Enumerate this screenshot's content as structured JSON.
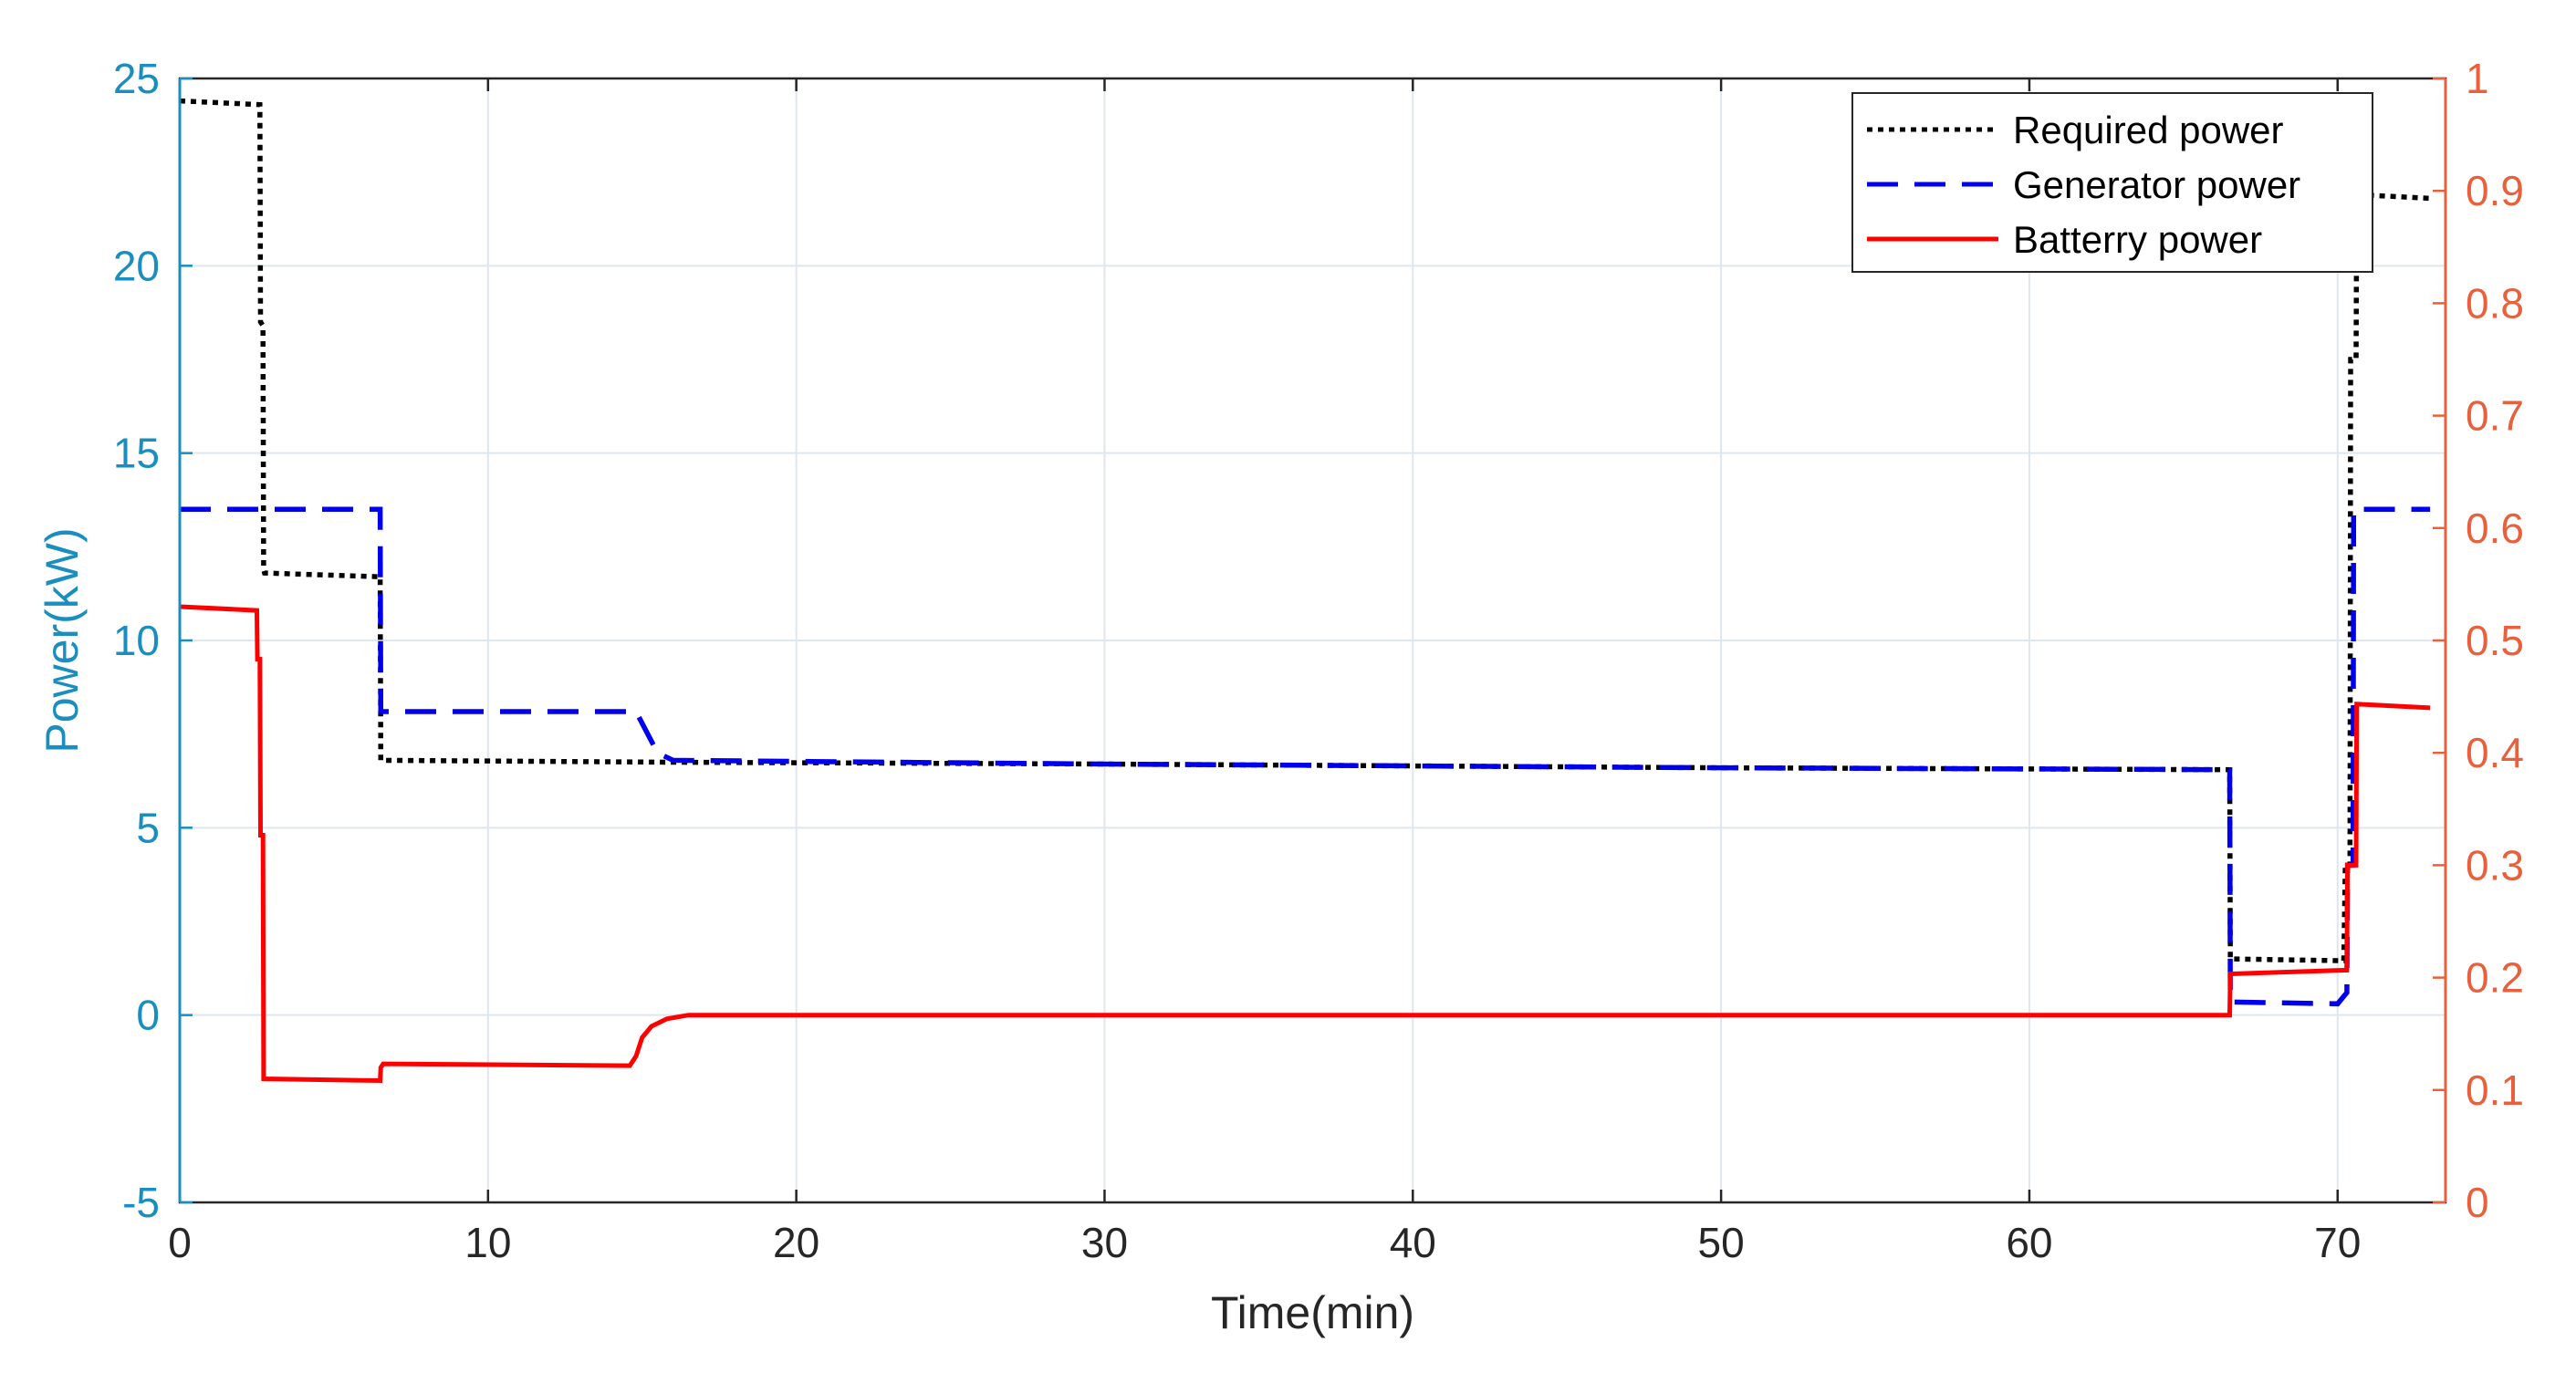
{
  "chart_data": {
    "type": "line",
    "title": "",
    "xlabel": "Time(min)",
    "ylabel": "Power(kW)",
    "xlim": [
      0,
      73.5
    ],
    "ylim": [
      -5,
      25
    ],
    "y2lim": [
      0,
      1
    ],
    "xticks": [
      0,
      10,
      20,
      30,
      40,
      50,
      60,
      70
    ],
    "yticks": [
      -5,
      0,
      5,
      10,
      15,
      20,
      25
    ],
    "y2ticks": [
      0,
      0.1,
      0.2,
      0.3,
      0.4,
      0.5,
      0.6,
      0.7,
      0.8,
      0.9,
      1
    ],
    "x_tick_labels": [
      "0",
      "10",
      "20",
      "30",
      "40",
      "50",
      "60",
      "70"
    ],
    "y_tick_labels": [
      "-5",
      "0",
      "5",
      "10",
      "15",
      "20",
      "25"
    ],
    "y2_tick_labels": [
      "0",
      "0.1",
      "0.2",
      "0.3",
      "0.4",
      "0.5",
      "0.6",
      "0.7",
      "0.8",
      "0.9",
      "1"
    ],
    "grid": true,
    "legend_position": "top-right",
    "colors": {
      "left_axis": "#1a8fbf",
      "right_axis": "#e8603c",
      "grid": "#dfe6ee",
      "frame": "#262626"
    },
    "series": [
      {
        "name": "Required power",
        "color": "#000000",
        "style": "dotted",
        "x": [
          0,
          2.6,
          2.62,
          2.7,
          2.72,
          2.75,
          6.5,
          6.52,
          16.0,
          30,
          50,
          66.5,
          66.52,
          70.2,
          70.25,
          70.4,
          70.42,
          70.6,
          70.62,
          73.0
        ],
        "y": [
          24.4,
          24.3,
          18.5,
          18.4,
          11.9,
          11.8,
          11.7,
          6.8,
          6.75,
          6.7,
          6.6,
          6.55,
          1.5,
          1.45,
          4.0,
          4.0,
          17.5,
          17.5,
          21.9,
          21.8
        ]
      },
      {
        "name": "Generator power",
        "color": "#0000ee",
        "style": "dashed",
        "x": [
          0,
          6.5,
          6.52,
          14.8,
          15.5,
          16.0,
          30,
          50,
          66.5,
          66.52,
          70.0,
          70.3,
          70.32,
          70.5,
          70.52,
          73.0
        ],
        "y": [
          13.5,
          13.5,
          8.1,
          8.1,
          7.0,
          6.8,
          6.7,
          6.6,
          6.55,
          0.35,
          0.3,
          0.6,
          4.0,
          4.0,
          13.5,
          13.5
        ]
      },
      {
        "name": "Batterry power",
        "color": "#ff0000",
        "style": "solid",
        "x": [
          0,
          2.5,
          2.52,
          2.6,
          2.62,
          2.7,
          2.72,
          6.5,
          6.52,
          6.6,
          14.6,
          14.8,
          15.0,
          15.3,
          15.8,
          16.5,
          17.5,
          30,
          50,
          66.5,
          66.52,
          70.3,
          70.32,
          70.6,
          70.62,
          73.0
        ],
        "y": [
          10.9,
          10.8,
          9.5,
          9.5,
          4.8,
          4.8,
          -1.7,
          -1.75,
          -1.4,
          -1.3,
          -1.35,
          -1.1,
          -0.6,
          -0.3,
          -0.1,
          0,
          0,
          0,
          0,
          0,
          1.1,
          1.2,
          4.0,
          4.0,
          8.3,
          8.2
        ]
      }
    ]
  }
}
